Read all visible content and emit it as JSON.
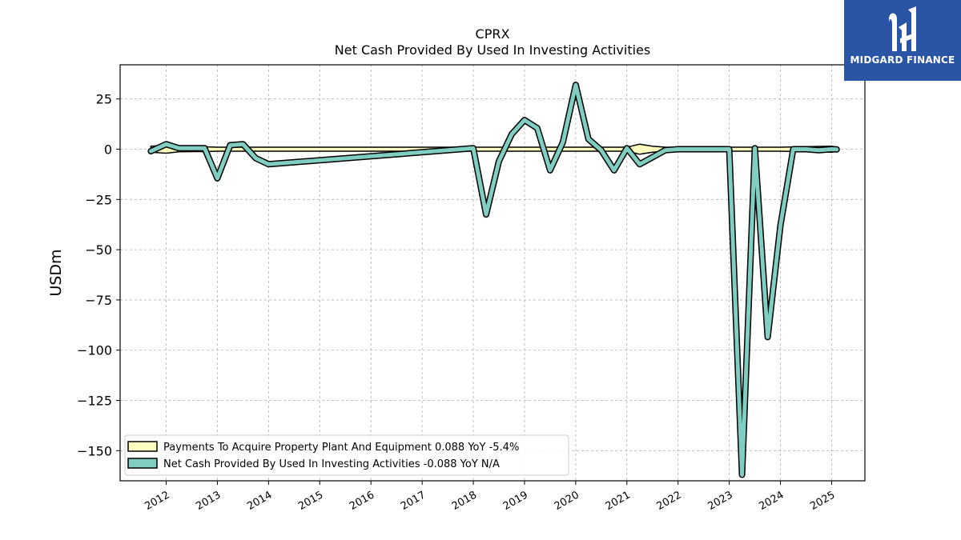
{
  "chart_data": {
    "type": "line",
    "title": "CPRX",
    "subtitle": "Net Cash Provided By Used In Investing Activities",
    "ylabel": "USDm",
    "ylim": [
      -165,
      42
    ],
    "xlim": [
      2011.1,
      2025.65
    ],
    "yticks": [
      25,
      0,
      -25,
      -50,
      -75,
      -100,
      -125,
      -150
    ],
    "ytick_labels": [
      "25",
      "0",
      "−25",
      "−50",
      "−75",
      "−100",
      "−125",
      "−150"
    ],
    "xticks": [
      2012,
      2013,
      2014,
      2015,
      2016,
      2017,
      2018,
      2019,
      2020,
      2021,
      2022,
      2023,
      2024,
      2025
    ],
    "grid": true,
    "legend_position": "lower-left",
    "series": [
      {
        "name": "Payments To Acquire Property Plant And Equipment",
        "legend_label": "Payments To Acquire Property Plant And Equipment  0.088 YoY -5.4%",
        "kind": "band",
        "color": "#ffffbf",
        "x": [
          2011.7,
          2012.0,
          2012.25,
          2012.5,
          2012.75,
          2013.0,
          2014.0,
          2018.0,
          2021.0,
          2021.25,
          2021.5,
          2021.75,
          2022.0,
          2023.0,
          2023.5,
          2024.0,
          2025.0,
          2025.1
        ],
        "values": [
          1.5,
          2.0,
          1.3,
          1.2,
          1.2,
          1.0,
          1.0,
          1.0,
          1.0,
          2.5,
          1.5,
          1.0,
          1.0,
          1.0,
          1.0,
          1.0,
          1.5,
          1.0
        ]
      },
      {
        "name": "Net Cash Provided By Used In Investing Activities",
        "legend_label": "Net Cash Provided By Used In Investing Activities  -0.088 YoY N/A",
        "kind": "line",
        "color": "#80cdc1",
        "x": [
          2011.7,
          2012.0,
          2012.25,
          2012.5,
          2012.75,
          2013.0,
          2013.25,
          2013.5,
          2013.75,
          2014.0,
          2018.0,
          2018.25,
          2018.5,
          2018.75,
          2019.0,
          2019.25,
          2019.5,
          2019.75,
          2020.0,
          2020.25,
          2020.5,
          2020.75,
          2021.0,
          2021.25,
          2021.5,
          2021.75,
          2022.0,
          2023.0,
          2023.25,
          2023.5,
          2023.75,
          2024.0,
          2024.25,
          2024.5,
          2024.75,
          2025.0,
          2025.1
        ],
        "values": [
          -1,
          2.5,
          0.5,
          0.5,
          0.5,
          -14.5,
          2,
          2.5,
          -4.5,
          -7.5,
          0.5,
          -32.5,
          -6,
          7.5,
          14.5,
          10.5,
          -10.5,
          3.5,
          32,
          5,
          -0.5,
          -10.5,
          0.5,
          -7.5,
          -4,
          -0.5,
          0,
          0,
          -162,
          0.5,
          -93.5,
          -38,
          0,
          0,
          -0.5,
          0,
          -0.1
        ]
      }
    ]
  },
  "logo": {
    "text": "MIDGARD FINANCE",
    "color": "#2a55a4"
  }
}
